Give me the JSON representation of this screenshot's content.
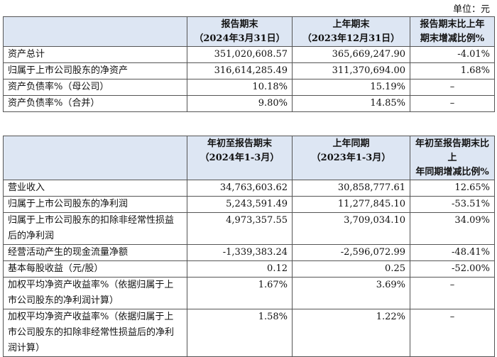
{
  "unit_label": "单位：元",
  "table1": {
    "headers": [
      {
        "line1": "",
        "line2": ""
      },
      {
        "line1": "报告期末",
        "line2": "（2024年3月31日）"
      },
      {
        "line1": "上年期末",
        "line2": "（2023年12月31日）"
      },
      {
        "line1": "报告期末比上年",
        "line2": "期末增减比例%"
      }
    ],
    "rows": [
      {
        "label": "资产总计",
        "current": "351,020,608.57",
        "previous": "365,669,247.90",
        "change": "-4.01%"
      },
      {
        "label": "归属于上市公司股东的净资产",
        "current": "316,614,285.49",
        "previous": "311,370,694.00",
        "change": "1.68%"
      },
      {
        "label": "资产负债率%（母公司）",
        "current": "10.18%",
        "previous": "15.19%",
        "change": "–"
      },
      {
        "label": "资产负债率%（合并）",
        "current": "9.80%",
        "previous": "14.85%",
        "change": "–"
      }
    ]
  },
  "table2": {
    "headers": [
      {
        "line1": "",
        "line2": ""
      },
      {
        "line1": "年初至报告期末",
        "line2": "（2024年1-3月）"
      },
      {
        "line1": "上年同期",
        "line2": "（2023年1-3月）"
      },
      {
        "line1": "年初至报告期末比上",
        "line2": "年同期增减比例%"
      }
    ],
    "rows": [
      {
        "label": "营业收入",
        "current": "34,763,603.62",
        "previous": "30,858,777.61",
        "change": "12.65%"
      },
      {
        "label": "归属于上市公司股东的净利润",
        "current": "5,243,591.49",
        "previous": "11,277,845.10",
        "change": "-53.51%"
      },
      {
        "label": "归属于上市公司股东的扣除非经常性损益后的净利润",
        "current": "4,973,357.55",
        "previous": "3,709,034.10",
        "change": "34.09%"
      },
      {
        "label": "经营活动产生的现金流量净额",
        "current": "-1,339,383.24",
        "previous": "-2,596,072.99",
        "change": "-48.41%"
      },
      {
        "label": "基本每股收益（元/股）",
        "current": "0.12",
        "previous": "0.25",
        "change": "-52.00%"
      },
      {
        "label": "加权平均净资产收益率%（依据归属于上市公司股东的净利润计算）",
        "current": "1.67%",
        "previous": "3.69%",
        "change": "–"
      },
      {
        "label": "加权平均净资产收益率%（依据归属于上市公司股东的扣除非经常性损益后的净利润计算）",
        "current": "1.58%",
        "previous": "1.22%",
        "change": "–"
      }
    ]
  }
}
